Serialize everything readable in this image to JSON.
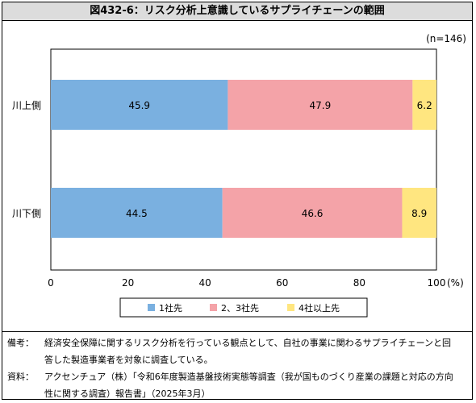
{
  "title": "図432-6：リスク分析上意識しているサプライチェーンの範囲",
  "sample_size": "(n=146)",
  "chart_data": {
    "type": "bar",
    "orientation": "horizontal",
    "stacked": true,
    "categories": [
      "川上側",
      "川下側"
    ],
    "series": [
      {
        "name": "1社先",
        "color": "#7ab0e0",
        "values": [
          45.9,
          44.5
        ]
      },
      {
        "name": "2、3社先",
        "color": "#f4a3a8",
        "values": [
          47.9,
          46.6
        ]
      },
      {
        "name": "4社以上先",
        "color": "#ffe680",
        "values": [
          6.2,
          8.9
        ]
      }
    ],
    "xlim": [
      0,
      100
    ],
    "xticks": [
      0,
      20,
      40,
      60,
      80,
      100
    ],
    "xunit": "(%)",
    "grid": false,
    "legend": "bottom"
  },
  "notes": {
    "remarks_label": "備考：",
    "remarks_lines": [
      "経済安全保障に関するリスク分析を行っている観点として、自社の事業に関わるサプライチェーンと回",
      "答した製造事業者を対象に調査している。"
    ],
    "source_label": "資料：",
    "source_lines": [
      "アクセンチュア（株）「令和6年度製造基盤技術実態等調査（我が国ものづくり産業の課題と対応の方向",
      "性に関する調査）報告書」（2025年3月）"
    ]
  }
}
